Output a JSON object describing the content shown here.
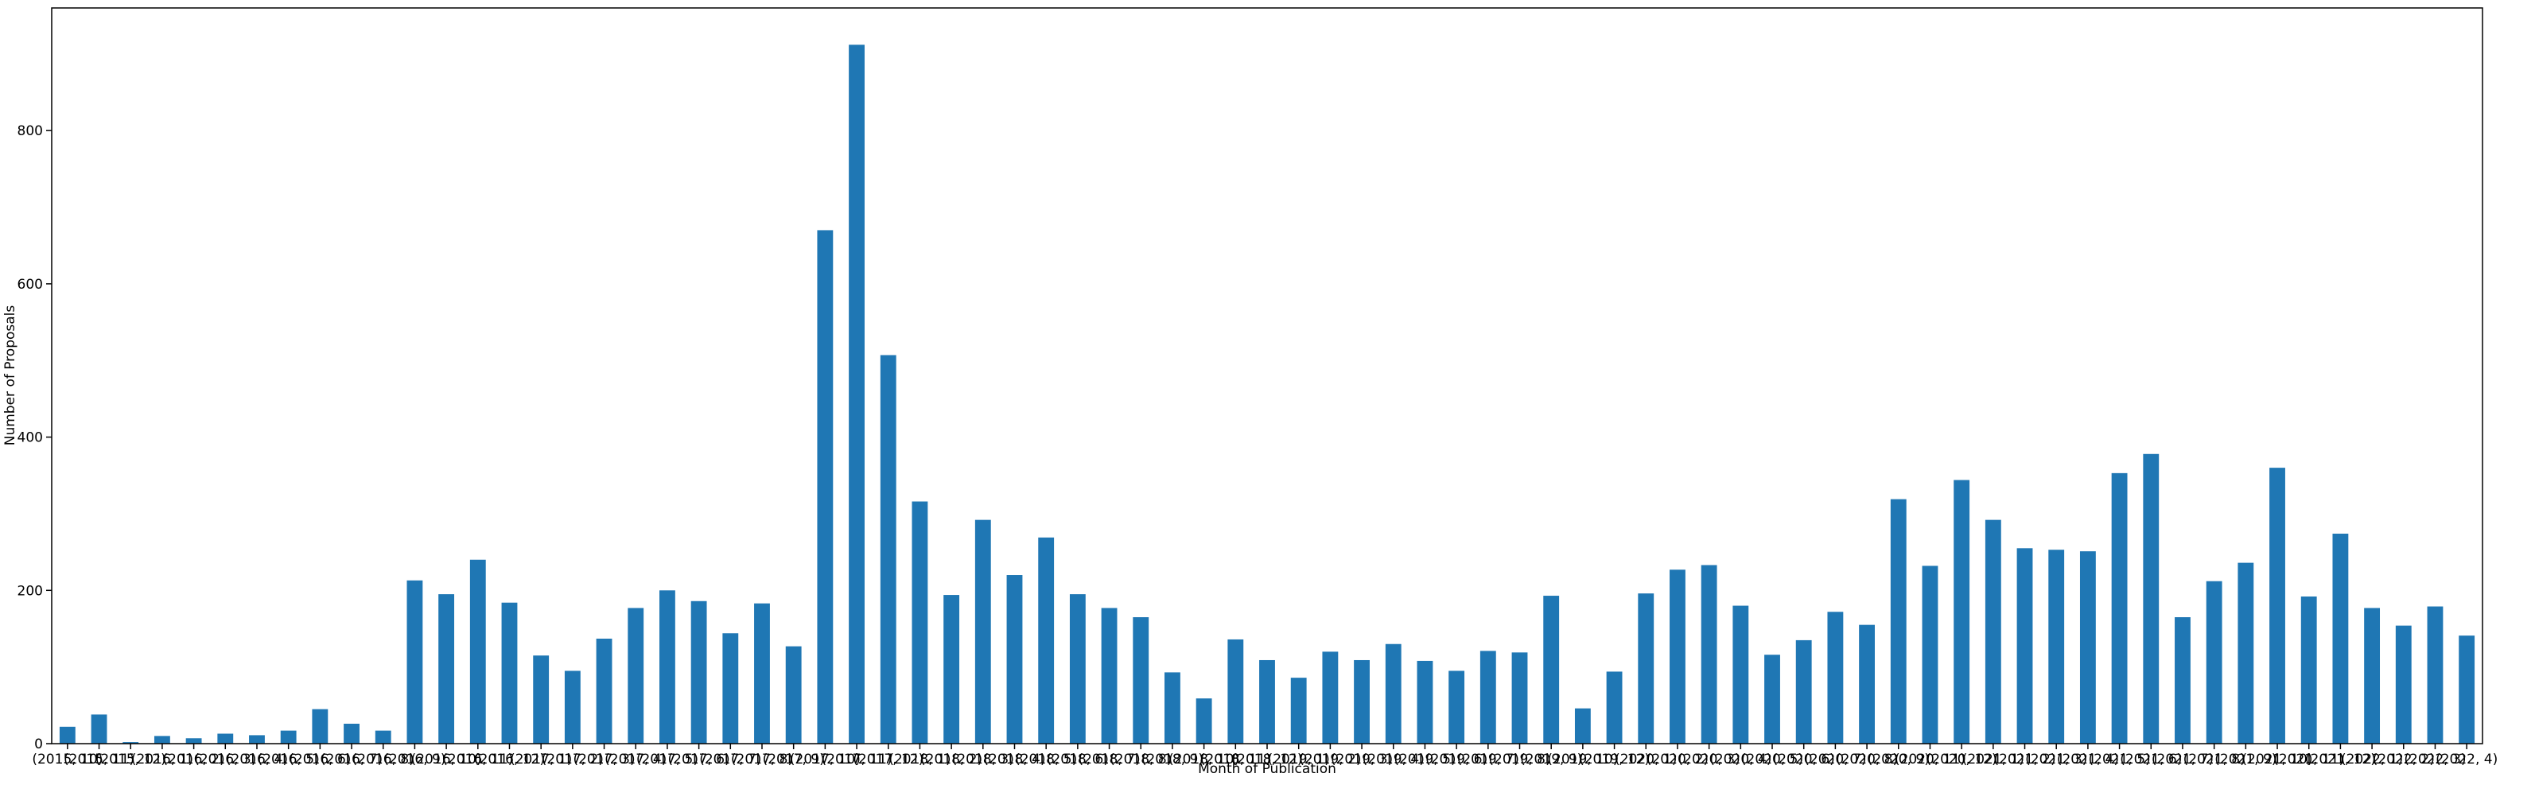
{
  "chart_data": {
    "type": "bar",
    "x_label": "Month of Publication",
    "y_label": "Number of Proposals",
    "color": "#1f77b4",
    "categories": [
      "(2015, 10)",
      "(2015, 11)",
      "(2015, 12)",
      "(2016, 1)",
      "(2016, 2)",
      "(2016, 3)",
      "(2016, 4)",
      "(2016, 5)",
      "(2016, 6)",
      "(2016, 7)",
      "(2016, 8)",
      "(2016, 9)",
      "(2016, 10)",
      "(2016, 11)",
      "(2016, 12)",
      "(2017, 1)",
      "(2017, 2)",
      "(2017, 3)",
      "(2017, 4)",
      "(2017, 5)",
      "(2017, 6)",
      "(2017, 7)",
      "(2017, 8)",
      "(2017, 9)",
      "(2017, 10)",
      "(2017, 11)",
      "(2017, 12)",
      "(2018, 1)",
      "(2018, 2)",
      "(2018, 3)",
      "(2018, 4)",
      "(2018, 5)",
      "(2018, 6)",
      "(2018, 7)",
      "(2018, 8)",
      "(2018, 9)",
      "(2018, 10)",
      "(2018, 11)",
      "(2018, 12)",
      "(2019, 1)",
      "(2019, 2)",
      "(2019, 3)",
      "(2019, 4)",
      "(2019, 5)",
      "(2019, 6)",
      "(2019, 7)",
      "(2019, 8)",
      "(2019, 9)",
      "(2019, 10)",
      "(2019, 12)",
      "(2020, 1)",
      "(2020, 2)",
      "(2020, 3)",
      "(2020, 4)",
      "(2020, 5)",
      "(2020, 6)",
      "(2020, 7)",
      "(2020, 8)",
      "(2020, 9)",
      "(2020, 11)",
      "(2020, 12)",
      "(2021, 1)",
      "(2021, 2)",
      "(2021, 3)",
      "(2021, 4)",
      "(2021, 5)",
      "(2021, 6)",
      "(2021, 7)",
      "(2021, 8)",
      "(2021, 9)",
      "(2021, 10)",
      "(2021, 11)",
      "(2021, 12)",
      "(2022, 1)",
      "(2022, 2)",
      "(2022, 3)",
      "(2022, 4)"
    ],
    "values": [
      22,
      38,
      2,
      10,
      7,
      13,
      11,
      17,
      45,
      26,
      17,
      213,
      195,
      240,
      184,
      115,
      95,
      137,
      177,
      200,
      186,
      144,
      183,
      127,
      670,
      912,
      507,
      316,
      194,
      292,
      220,
      269,
      195,
      177,
      165,
      93,
      59,
      136,
      109,
      86,
      120,
      109,
      130,
      108,
      95,
      121,
      119,
      193,
      46,
      94,
      196,
      227,
      233,
      180,
      116,
      135,
      172,
      155,
      319,
      232,
      344,
      292,
      255,
      253,
      251,
      353,
      378,
      165,
      212,
      236,
      360,
      192,
      274,
      177,
      154,
      179,
      141
    ],
    "ylim": [
      0,
      960
    ],
    "yticks": [
      0,
      200,
      400,
      600,
      800
    ]
  }
}
